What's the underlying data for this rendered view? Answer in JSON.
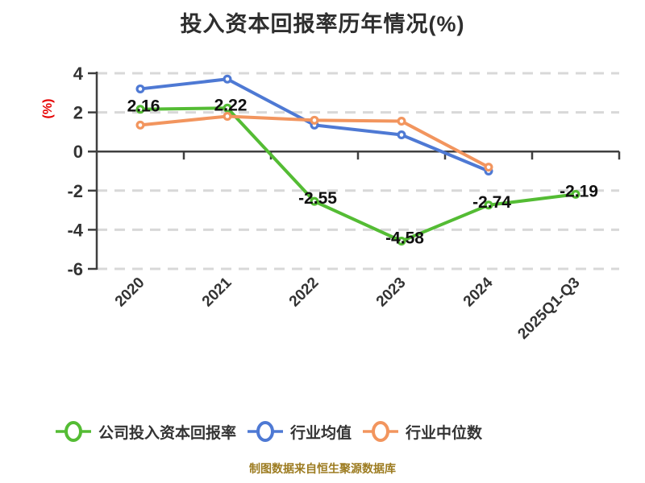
{
  "title": "投入资本回报率历年情况(%)",
  "footer": "制图数据来自恒生聚源数据库",
  "y_axis": {
    "label": "(%)",
    "label_color": "#e60000",
    "tick_labels": [
      "4",
      "2",
      "0",
      "-2",
      "-4",
      "-6"
    ],
    "tick_values": [
      4,
      2,
      0,
      -2,
      -4,
      -6
    ]
  },
  "x_axis": {
    "categories": [
      "2020",
      "2021",
      "2022",
      "2023",
      "2024",
      "2025Q1-Q3"
    ]
  },
  "colors": {
    "company_series": "#54bc34",
    "industry_mean_series": "#4e79d4",
    "industry_median_series": "#f2955e",
    "grid": "#d8d8d8",
    "axis": "#3f3f3f",
    "tick_text": "#333333",
    "value_label_text": "#111111",
    "footer_text": "#9c7b20"
  },
  "chart_data": {
    "type": "line",
    "title": "投入资本回报率历年情况(%)",
    "ylabel": "(%)",
    "ylim": [
      -6,
      4
    ],
    "grid": "horizontal dashed",
    "legend_position": "bottom",
    "categories": [
      "2020",
      "2021",
      "2022",
      "2023",
      "2024",
      "2025Q1-Q3"
    ],
    "series": [
      {
        "name": "公司投入资本回报率",
        "color": "#54bc34",
        "values": [
          2.16,
          2.22,
          -2.55,
          -4.58,
          -2.74,
          -2.19
        ],
        "point_labels": [
          "2.16",
          "2.22",
          "-2.55",
          "-4.58",
          "-2.74",
          "-2.19"
        ]
      },
      {
        "name": "行业均值",
        "color": "#4e79d4",
        "values": [
          3.2,
          3.7,
          1.35,
          0.85,
          -1.0,
          null
        ],
        "point_labels": null
      },
      {
        "name": "行业中位数",
        "color": "#f2955e",
        "values": [
          1.35,
          1.8,
          1.6,
          1.55,
          -0.8,
          null
        ],
        "point_labels": null
      }
    ]
  }
}
